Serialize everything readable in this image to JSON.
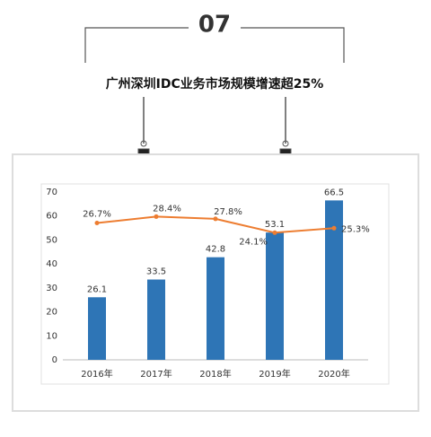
{
  "header": {
    "number": "07",
    "title": "广州深圳IDC业务市场规模增速超25%"
  },
  "chart_data": {
    "type": "bar",
    "categories": [
      "2016年",
      "2017年",
      "2018年",
      "2019年",
      "2020年"
    ],
    "series": [
      {
        "type": "bar",
        "color": "#2e75b6",
        "values": [
          26.1,
          33.5,
          42.8,
          53.1,
          66.5
        ]
      },
      {
        "type": "line",
        "axis": "y2",
        "color": "#ed7d31",
        "values": [
          26.7,
          28.4,
          27.8,
          24.1,
          25.3
        ],
        "value_labels": [
          "26.7%",
          "28.4%",
          "27.8%",
          "24.1%",
          "25.3%"
        ]
      }
    ],
    "ylim": [
      0,
      70
    ],
    "yticks": [
      0,
      10,
      20,
      30,
      40,
      50,
      60,
      70
    ],
    "y2lim": [
      -10,
      35
    ],
    "grid": false
  }
}
